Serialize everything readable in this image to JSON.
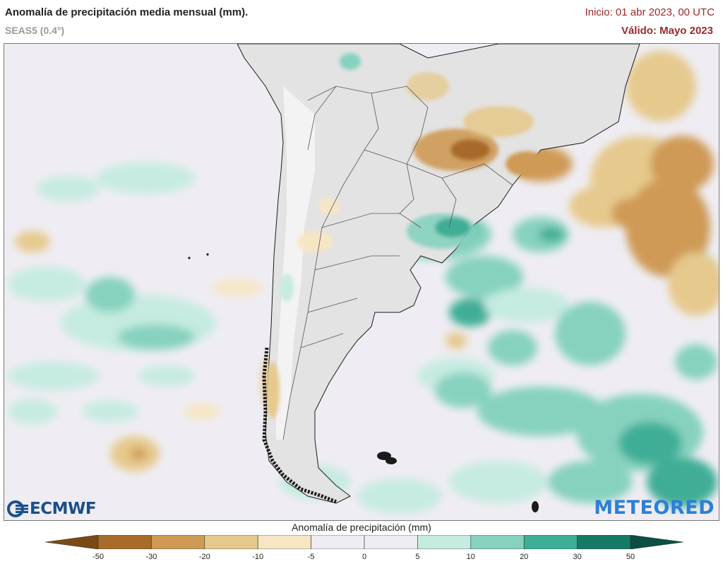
{
  "header": {
    "title": "Anomalía de precipitación media mensual (mm).",
    "model": "SEAS5 (0.4°)",
    "init": "Inicio: 01 abr 2023, 00 UTC",
    "valid": "Válido: Mayo 2023"
  },
  "logos": {
    "left": "ECMWF",
    "right": "METEORED"
  },
  "colorbar": {
    "title": "Anomalía de precipitación (mm)",
    "ticks": [
      "-50",
      "-30",
      "-20",
      "-10",
      "-5",
      "0",
      "5",
      "10",
      "20",
      "30",
      "50"
    ],
    "colors": [
      "#7a4a12",
      "#a86b2a",
      "#cf9a55",
      "#e6c98d",
      "#f6e6c4",
      "#efedf3",
      "#efedf3",
      "#c6ebe1",
      "#86d2bf",
      "#3fae96",
      "#167a66",
      "#0a4f42"
    ]
  },
  "map": {
    "region": "Southern South America",
    "background": "#efedf3",
    "land": "#e3e3e3"
  }
}
